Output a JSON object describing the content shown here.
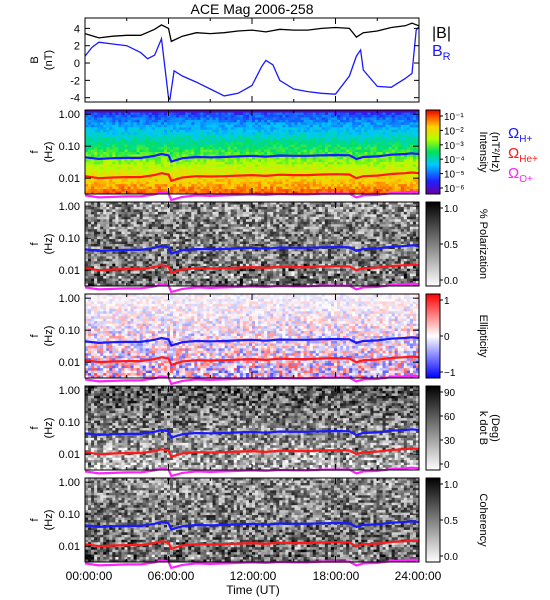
{
  "figure": {
    "title": "ACE Mag 2006-258",
    "time_axis_label": "Time (UT)",
    "time_ticks": [
      "00:00:00",
      "06:00:00",
      "12:00:00",
      "18:00:00",
      "24:00:00"
    ]
  },
  "chart_data": [
    {
      "type": "line",
      "panel": "magnetic-field",
      "ylabel": [
        "B",
        "(nT)"
      ],
      "ylim": [
        -4.5,
        5.2
      ],
      "yticks": [
        -4,
        -2,
        0,
        2,
        4
      ],
      "xlim": [
        0,
        24
      ],
      "legend": [
        {
          "label": "|B|",
          "color": "#000000"
        },
        {
          "label": "B",
          "subscript": "R",
          "color": "#1a1aff"
        }
      ],
      "series": [
        {
          "name": "|B|",
          "color": "#000000",
          "x": [
            0,
            1,
            2,
            3,
            4,
            5,
            5.5,
            6,
            6.2,
            7,
            8,
            9,
            10,
            11,
            12,
            13,
            14,
            15,
            16,
            17,
            18,
            19,
            19.5,
            20,
            21,
            22,
            23,
            23.5,
            24
          ],
          "y": [
            3.4,
            2.9,
            3.1,
            3.2,
            3.2,
            3.9,
            4.4,
            4.0,
            2.5,
            3.1,
            3.5,
            3.4,
            3.5,
            3.7,
            3.8,
            3.6,
            3.9,
            3.8,
            3.8,
            4.0,
            4.1,
            4.0,
            3.0,
            3.5,
            3.7,
            4.1,
            4.3,
            4.6,
            4.3
          ]
        },
        {
          "name": "B_R",
          "color": "#1a1aff",
          "x": [
            0,
            0.5,
            1,
            2,
            3,
            4,
            4.5,
            5,
            5.5,
            6,
            6.1,
            6.4,
            7,
            8,
            9,
            10,
            11,
            12,
            12.7,
            13,
            13.5,
            14,
            15,
            16,
            17,
            18,
            19,
            19.5,
            19.8,
            20,
            21,
            22,
            23,
            23.5,
            23.8,
            24
          ],
          "y": [
            0.8,
            1.8,
            2.4,
            2.2,
            2.0,
            1.2,
            0.5,
            0.9,
            2.8,
            -4.0,
            -4.2,
            -0.9,
            -1.5,
            -2.2,
            -3.0,
            -3.8,
            -3.5,
            -2.6,
            -0.4,
            0.3,
            -0.2,
            -2.0,
            -3.0,
            -3.3,
            -3.5,
            -3.6,
            -1.5,
            0.8,
            1.5,
            -0.8,
            -2.7,
            -2.8,
            -1.8,
            -1.2,
            3.8,
            4.2
          ]
        }
      ]
    },
    {
      "type": "heatmap",
      "panel": "intensity",
      "ylabel": [
        "f",
        "(Hz)"
      ],
      "yticks": [
        "1.00",
        "0.10",
        "0.01"
      ],
      "yscale": "log",
      "colorbar": {
        "label": [
          "Intensity",
          "(nT²/Hz)"
        ],
        "scale": "rainbow",
        "ticks": [
          "10⁻¹",
          "10⁻²",
          "10⁻³",
          "10⁻⁴",
          "10⁻⁵",
          "10⁻⁶"
        ]
      },
      "legend": [
        {
          "label": "Ω",
          "subscript": "H+",
          "color": "#1a1aff"
        },
        {
          "label": "Ω",
          "subscript": "He+",
          "color": "#ff1a1a"
        },
        {
          "label": "Ω",
          "subscript": "O+",
          "color": "#ff22ff"
        }
      ]
    },
    {
      "type": "heatmap",
      "panel": "polarization",
      "ylabel": [
        "f",
        "(Hz)"
      ],
      "yticks": [
        "1.00",
        "0.10",
        "0.01"
      ],
      "yscale": "log",
      "colorbar": {
        "label": [
          "% Polarization"
        ],
        "scale": "gray",
        "ticks": [
          "1.0",
          "0.5",
          "0.0"
        ]
      }
    },
    {
      "type": "heatmap",
      "panel": "ellipticity",
      "ylabel": [
        "f",
        "(Hz)"
      ],
      "yticks": [
        "1.00",
        "0.10",
        "0.01"
      ],
      "yscale": "log",
      "colorbar": {
        "label": [
          "Ellipticity"
        ],
        "scale": "bwr",
        "ticks": [
          "1",
          "0",
          "−1"
        ]
      }
    },
    {
      "type": "heatmap",
      "panel": "k-dot-b",
      "ylabel": [
        "f",
        "(Hz)"
      ],
      "yticks": [
        "1.00",
        "0.10",
        "0.01"
      ],
      "yscale": "log",
      "colorbar": {
        "label": [
          "k dot B",
          "(Deg)"
        ],
        "scale": "gray",
        "ticks": [
          "90",
          "60",
          "30",
          "0"
        ]
      }
    },
    {
      "type": "heatmap",
      "panel": "coherency",
      "ylabel": [
        "f",
        "(Hz)"
      ],
      "yticks": [
        "1.00",
        "0.10",
        "0.01"
      ],
      "yscale": "log",
      "colorbar": {
        "label": [
          "Coherency"
        ],
        "scale": "gray",
        "ticks": [
          "1.0",
          "0.5",
          "0.0"
        ]
      }
    }
  ],
  "cyclotron_lines": {
    "x": [
      0,
      1,
      2,
      3,
      4,
      5,
      5.5,
      6,
      6.2,
      7,
      8,
      9,
      10,
      11,
      12,
      13,
      14,
      15,
      16,
      17,
      18,
      19,
      19.5,
      20,
      21,
      22,
      23,
      23.5,
      24
    ],
    "H+": [
      0.045,
      0.04,
      0.042,
      0.043,
      0.043,
      0.05,
      0.057,
      0.052,
      0.033,
      0.042,
      0.046,
      0.045,
      0.046,
      0.048,
      0.05,
      0.047,
      0.051,
      0.05,
      0.05,
      0.052,
      0.053,
      0.052,
      0.04,
      0.046,
      0.048,
      0.054,
      0.057,
      0.06,
      0.057
    ],
    "He+": [
      0.0115,
      0.01,
      0.0105,
      0.0108,
      0.0108,
      0.0125,
      0.0143,
      0.013,
      0.0083,
      0.0105,
      0.0115,
      0.0113,
      0.0115,
      0.012,
      0.0125,
      0.0118,
      0.0128,
      0.0125,
      0.0125,
      0.013,
      0.0133,
      0.013,
      0.01,
      0.0115,
      0.012,
      0.0135,
      0.0143,
      0.015,
      0.0143
    ],
    "O+": [
      0.0029,
      0.0025,
      0.0026,
      0.0027,
      0.0027,
      0.0031,
      0.0036,
      0.0033,
      0.0021,
      0.0026,
      0.0029,
      0.0028,
      0.0029,
      0.003,
      0.0031,
      0.003,
      0.0032,
      0.0031,
      0.0031,
      0.0033,
      0.0033,
      0.0033,
      0.0025,
      0.0029,
      0.003,
      0.0034,
      0.0036,
      0.0038,
      0.0036
    ]
  }
}
